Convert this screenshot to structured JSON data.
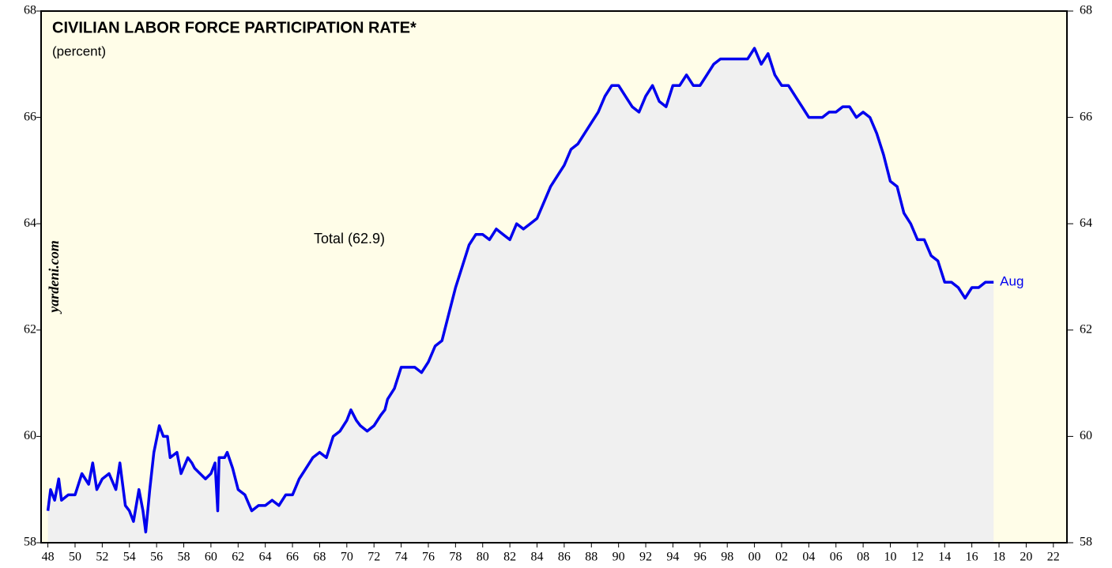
{
  "chart_data": {
    "type": "line",
    "title": "CIVILIAN LABOR FORCE PARTICIPATION RATE*",
    "subtitle": "(percent)",
    "annotations": {
      "total": "Total (62.9)",
      "end": "Aug",
      "source": "yardeni.com"
    },
    "x": [
      1948.0,
      1948.2,
      1948.5,
      1948.8,
      1949.0,
      1949.5,
      1950.0,
      1950.5,
      1951.0,
      1951.3,
      1951.6,
      1952.0,
      1952.5,
      1953.0,
      1953.3,
      1953.7,
      1954.0,
      1954.3,
      1954.7,
      1955.0,
      1955.2,
      1955.5,
      1955.8,
      1956.2,
      1956.5,
      1956.8,
      1957.0,
      1957.5,
      1957.8,
      1958.3,
      1958.6,
      1958.8,
      1959.2,
      1959.6,
      1960.0,
      1960.3,
      1960.5,
      1960.6,
      1961.0,
      1961.2,
      1961.6,
      1962.0,
      1962.5,
      1963.0,
      1963.5,
      1964.0,
      1964.5,
      1965.0,
      1965.5,
      1966.0,
      1966.5,
      1967.0,
      1967.5,
      1968.0,
      1968.5,
      1969.0,
      1969.5,
      1970.0,
      1970.3,
      1970.7,
      1971.0,
      1971.5,
      1972.0,
      1972.5,
      1972.8,
      1973.0,
      1973.5,
      1974.0,
      1974.5,
      1975.0,
      1975.5,
      1976.0,
      1976.5,
      1977.0,
      1977.5,
      1978.0,
      1978.5,
      1979.0,
      1979.5,
      1980.0,
      1980.5,
      1981.0,
      1981.5,
      1982.0,
      1982.5,
      1983.0,
      1983.5,
      1984.0,
      1984.5,
      1985.0,
      1985.5,
      1986.0,
      1986.5,
      1987.0,
      1987.5,
      1988.0,
      1988.5,
      1989.0,
      1989.5,
      1990.0,
      1990.5,
      1991.0,
      1991.5,
      1992.0,
      1992.5,
      1993.0,
      1993.5,
      1994.0,
      1994.5,
      1995.0,
      1995.5,
      1996.0,
      1996.5,
      1997.0,
      1997.5,
      1998.0,
      1998.5,
      1999.0,
      1999.5,
      2000.0,
      2000.5,
      2001.0,
      2001.5,
      2002.0,
      2002.5,
      2003.0,
      2003.5,
      2004.0,
      2004.5,
      2005.0,
      2005.5,
      2006.0,
      2006.5,
      2007.0,
      2007.5,
      2008.0,
      2008.5,
      2009.0,
      2009.5,
      2010.0,
      2010.5,
      2011.0,
      2011.5,
      2012.0,
      2012.5,
      2013.0,
      2013.5,
      2014.0,
      2014.5,
      2015.0,
      2015.5,
      2016.0,
      2016.5,
      2017.0,
      2017.6
    ],
    "series": [
      {
        "name": "Total",
        "color": "#0000ee",
        "values": [
          58.6,
          59.0,
          58.8,
          59.2,
          58.8,
          58.9,
          58.9,
          59.3,
          59.1,
          59.5,
          59.0,
          59.2,
          59.3,
          59.0,
          59.5,
          58.7,
          58.6,
          58.4,
          59.0,
          58.6,
          58.2,
          59.0,
          59.7,
          60.2,
          60.0,
          60.0,
          59.6,
          59.7,
          59.3,
          59.6,
          59.5,
          59.4,
          59.3,
          59.2,
          59.3,
          59.5,
          58.6,
          59.6,
          59.6,
          59.7,
          59.4,
          59.0,
          58.9,
          58.6,
          58.7,
          58.7,
          58.8,
          58.7,
          58.9,
          58.9,
          59.2,
          59.4,
          59.6,
          59.7,
          59.6,
          60.0,
          60.1,
          60.3,
          60.5,
          60.3,
          60.2,
          60.1,
          60.2,
          60.4,
          60.5,
          60.7,
          60.9,
          61.3,
          61.3,
          61.3,
          61.2,
          61.4,
          61.7,
          61.8,
          62.3,
          62.8,
          63.2,
          63.6,
          63.8,
          63.8,
          63.7,
          63.9,
          63.8,
          63.7,
          64.0,
          63.9,
          64.0,
          64.1,
          64.4,
          64.7,
          64.9,
          65.1,
          65.4,
          65.5,
          65.7,
          65.9,
          66.1,
          66.4,
          66.6,
          66.6,
          66.4,
          66.2,
          66.1,
          66.4,
          66.6,
          66.3,
          66.2,
          66.6,
          66.6,
          66.8,
          66.6,
          66.6,
          66.8,
          67.0,
          67.1,
          67.1,
          67.1,
          67.1,
          67.1,
          67.3,
          67.0,
          67.2,
          66.8,
          66.6,
          66.6,
          66.4,
          66.2,
          66.0,
          66.0,
          66.0,
          66.1,
          66.1,
          66.2,
          66.2,
          66.0,
          66.1,
          66.0,
          65.7,
          65.3,
          64.8,
          64.7,
          64.2,
          64.0,
          63.7,
          63.7,
          63.4,
          63.3,
          62.9,
          62.9,
          62.8,
          62.6,
          62.8,
          62.8,
          62.9,
          62.9
        ]
      }
    ],
    "xlim": [
      1947.5,
      2023
    ],
    "xticks": [
      {
        "value": 1948,
        "label": "48"
      },
      {
        "value": 1950,
        "label": "50"
      },
      {
        "value": 1952,
        "label": "52"
      },
      {
        "value": 1954,
        "label": "54"
      },
      {
        "value": 1956,
        "label": "56"
      },
      {
        "value": 1958,
        "label": "58"
      },
      {
        "value": 1960,
        "label": "60"
      },
      {
        "value": 1962,
        "label": "62"
      },
      {
        "value": 1964,
        "label": "64"
      },
      {
        "value": 1966,
        "label": "66"
      },
      {
        "value": 1968,
        "label": "68"
      },
      {
        "value": 1970,
        "label": "70"
      },
      {
        "value": 1972,
        "label": "72"
      },
      {
        "value": 1974,
        "label": "74"
      },
      {
        "value": 1976,
        "label": "76"
      },
      {
        "value": 1978,
        "label": "78"
      },
      {
        "value": 1980,
        "label": "80"
      },
      {
        "value": 1982,
        "label": "82"
      },
      {
        "value": 1984,
        "label": "84"
      },
      {
        "value": 1986,
        "label": "86"
      },
      {
        "value": 1988,
        "label": "88"
      },
      {
        "value": 1990,
        "label": "90"
      },
      {
        "value": 1992,
        "label": "92"
      },
      {
        "value": 1994,
        "label": "94"
      },
      {
        "value": 1996,
        "label": "96"
      },
      {
        "value": 1998,
        "label": "98"
      },
      {
        "value": 2000,
        "label": "00"
      },
      {
        "value": 2002,
        "label": "02"
      },
      {
        "value": 2004,
        "label": "04"
      },
      {
        "value": 2006,
        "label": "06"
      },
      {
        "value": 2008,
        "label": "08"
      },
      {
        "value": 2010,
        "label": "10"
      },
      {
        "value": 2012,
        "label": "12"
      },
      {
        "value": 2014,
        "label": "14"
      },
      {
        "value": 2016,
        "label": "16"
      },
      {
        "value": 2018,
        "label": "18"
      },
      {
        "value": 2020,
        "label": "20"
      },
      {
        "value": 2022,
        "label": "22"
      }
    ],
    "ylim": [
      58,
      68
    ],
    "yticks": [
      58,
      60,
      62,
      64,
      66,
      68
    ],
    "background": "#fffde8",
    "area_color": "#f0f0f0"
  }
}
